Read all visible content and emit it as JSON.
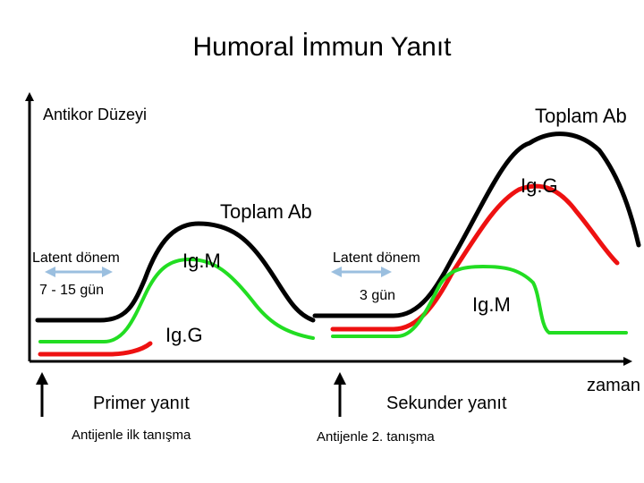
{
  "title": "Humoral İmmun Yanıt",
  "axes": {
    "y_label": "Antikor Düzeyi",
    "x_label": "zaman"
  },
  "primary": {
    "total_ab_label": "Toplam Ab",
    "igm_label": "Ig.M",
    "igg_label": "Ig.G",
    "latent_label": "Latent dönem",
    "latent_duration": "7 - 15 gün",
    "response_label": "Primer yanıt",
    "antigen_label": "Antijenle ilk tanışma"
  },
  "secondary": {
    "total_ab_label": "Toplam Ab",
    "igg_label": "Ig.G",
    "igm_label": "Ig.M",
    "latent_label": "Latent dönem",
    "latent_duration": "3 gün",
    "response_label": "Sekunder yanıt",
    "antigen_label": "Antijenle 2. tanışma"
  },
  "colors": {
    "total_ab": "#000000",
    "igg": "#ee1111",
    "igm": "#22dd22",
    "latent_arrow": "#9bbfdf",
    "axis": "#000000"
  }
}
